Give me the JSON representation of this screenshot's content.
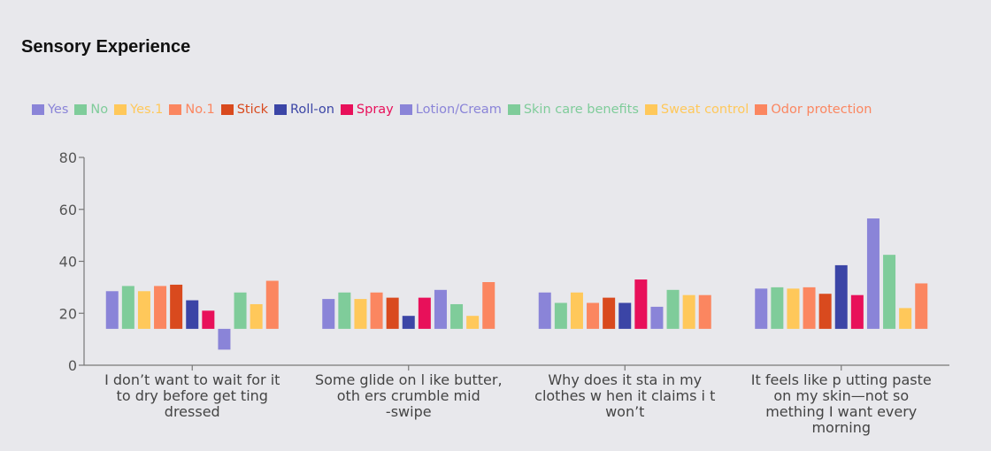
{
  "title": "Sensory Experience",
  "chart_data": {
    "type": "bar",
    "title": "Sensory Experience",
    "xlabel": "",
    "ylabel": "",
    "ylim": [
      0,
      80
    ],
    "yticks": [
      0,
      20,
      40,
      60,
      80
    ],
    "baseline": 14,
    "grid": false,
    "legend_position": "top-left",
    "categories": [
      "I don’t want to wait for it to dry before getting dressed",
      "Some glide on like butter, others crumble mid-swipe",
      "Why does it stain my clothes when it claims it won’t",
      "It feels like putting paste on my skin—not something I want every morning"
    ],
    "category_lines": [
      [
        "I don’t want to wait for it",
        "to dry before get ting",
        "dressed"
      ],
      [
        "Some glide on l ike butter,",
        "oth ers crumble mid",
        "-swipe"
      ],
      [
        "Why does it sta in my",
        "clothes w hen it claims i t",
        "won’t"
      ],
      [
        "It feels like p utting paste",
        "on my skin—not so",
        "mething I want every",
        "morning"
      ]
    ],
    "series": [
      {
        "name": "Yes",
        "color": "#8a84d8",
        "values": [
          28.5,
          25.5,
          28,
          29.5
        ]
      },
      {
        "name": "No",
        "color": "#7fcc9a",
        "values": [
          30.5,
          28,
          24,
          30
        ]
      },
      {
        "name": "Yes.1",
        "color": "#ffc85a",
        "values": [
          28.5,
          25.5,
          28,
          29.5
        ]
      },
      {
        "name": "No.1",
        "color": "#fb8660",
        "values": [
          30.5,
          28,
          24,
          30
        ]
      },
      {
        "name": "Stick",
        "color": "#d94a1e",
        "values": [
          31,
          26,
          26,
          27.5
        ]
      },
      {
        "name": "Roll-on",
        "color": "#3b45a6",
        "values": [
          25,
          19,
          24,
          38.5
        ]
      },
      {
        "name": "Spray",
        "color": "#e8105a",
        "values": [
          21,
          26,
          33,
          27
        ]
      },
      {
        "name": "Lotion/Cream",
        "color": "#8a84d8",
        "values": [
          6,
          29,
          22.5,
          56.5
        ]
      },
      {
        "name": "Skin care benefits",
        "color": "#7fcc9a",
        "values": [
          28,
          23.5,
          29,
          42.5
        ]
      },
      {
        "name": "Sweat control",
        "color": "#ffc85a",
        "values": [
          23.5,
          19,
          27,
          22
        ]
      },
      {
        "name": "Odor protection",
        "color": "#fb8660",
        "values": [
          32.5,
          32,
          27,
          31.5
        ]
      }
    ]
  }
}
